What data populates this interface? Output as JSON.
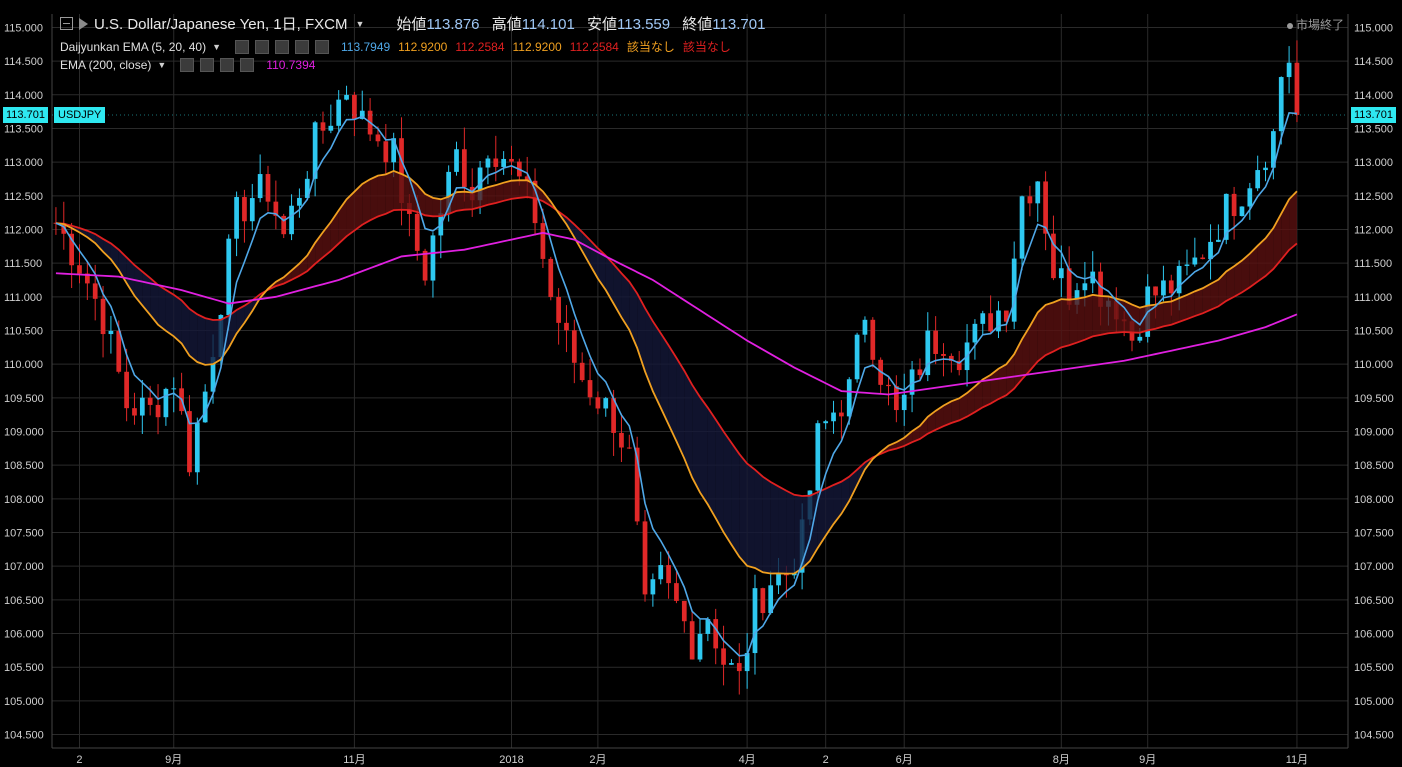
{
  "header": {
    "title": "U.S. Dollar/Japanese Yen, 1日, FXCM",
    "open_label": "始値",
    "open": "113.876",
    "high_label": "高値",
    "high": "114.101",
    "low_label": "安値",
    "low": "113.559",
    "close_label": "終値",
    "close": "113.701",
    "status": "市場終了"
  },
  "indicators": [
    {
      "name": "Daijyunkan EMA (5, 20, 40)",
      "values": [
        {
          "text": "113.7949",
          "color": "#4fa8e8"
        },
        {
          "text": "112.9200",
          "color": "#f0a020"
        },
        {
          "text": "112.2584",
          "color": "#e02020"
        },
        {
          "text": "112.9200",
          "color": "#f0a020"
        },
        {
          "text": "112.2584",
          "color": "#e02020"
        },
        {
          "text": "該当なし",
          "color": "#f0a020"
        },
        {
          "text": "該当なし",
          "color": "#e02020"
        }
      ]
    },
    {
      "name": "EMA (200, close)",
      "values": [
        {
          "text": "110.7394",
          "color": "#e020e0"
        }
      ]
    }
  ],
  "price_tag": "113.701",
  "symbol_tag": "USDJPY",
  "colors": {
    "up": "#2ec8f0",
    "down": "#e02828",
    "ema5": "#4fa8e8",
    "ema20": "#f0a020",
    "ema40": "#e02020",
    "ema200": "#e020e0",
    "grid": "#2a2a2a",
    "axis_text": "#d0d0d0"
  },
  "chart_data": {
    "type": "line",
    "instrument": "USDJPY",
    "ylim": [
      104.3,
      115.2
    ],
    "y_ticks": [
      "104.500",
      "105.000",
      "105.500",
      "106.000",
      "106.500",
      "107.000",
      "107.500",
      "108.000",
      "108.500",
      "109.000",
      "109.500",
      "110.000",
      "110.500",
      "111.000",
      "111.500",
      "112.000",
      "112.500",
      "113.000",
      "113.500",
      "114.000",
      "114.500",
      "115.000"
    ],
    "x_ticks": [
      "2",
      "9月",
      "11月",
      "2018",
      "2月",
      "4月",
      "2",
      "6月",
      "8月",
      "9月",
      "11月"
    ],
    "x_tick_index": [
      3,
      15,
      38,
      58,
      69,
      88,
      98,
      108,
      128,
      139,
      158
    ],
    "n_bars": 165,
    "price_path": [
      [
        0,
        112.1
      ],
      [
        3,
        111.5
      ],
      [
        6,
        110.7
      ],
      [
        9,
        109.4
      ],
      [
        12,
        109.3
      ],
      [
        15,
        109.8
      ],
      [
        17,
        108.6
      ],
      [
        19,
        109.6
      ],
      [
        21,
        111.0
      ],
      [
        23,
        112.2
      ],
      [
        25,
        112.5
      ],
      [
        27,
        112.6
      ],
      [
        29,
        111.9
      ],
      [
        31,
        112.6
      ],
      [
        33,
        113.3
      ],
      [
        35,
        113.7
      ],
      [
        37,
        114.1
      ],
      [
        39,
        113.6
      ],
      [
        41,
        113.4
      ],
      [
        43,
        113.1
      ],
      [
        45,
        112.0
      ],
      [
        47,
        111.4
      ],
      [
        49,
        112.3
      ],
      [
        51,
        113.1
      ],
      [
        53,
        112.6
      ],
      [
        55,
        113.3
      ],
      [
        57,
        113.1
      ],
      [
        59,
        112.7
      ],
      [
        61,
        112.2
      ],
      [
        63,
        111.0
      ],
      [
        65,
        110.3
      ],
      [
        67,
        109.8
      ],
      [
        69,
        109.5
      ],
      [
        71,
        109.2
      ],
      [
        73,
        108.6
      ],
      [
        75,
        106.3
      ],
      [
        77,
        106.8
      ],
      [
        79,
        106.4
      ],
      [
        81,
        105.9
      ],
      [
        83,
        106.3
      ],
      [
        85,
        105.6
      ],
      [
        87,
        105.3
      ],
      [
        89,
        106.4
      ],
      [
        91,
        106.8
      ],
      [
        93,
        106.9
      ],
      [
        95,
        107.4
      ],
      [
        97,
        108.9
      ],
      [
        99,
        109.3
      ],
      [
        101,
        109.6
      ],
      [
        103,
        110.8
      ],
      [
        105,
        109.9
      ],
      [
        107,
        109.2
      ],
      [
        109,
        109.7
      ],
      [
        111,
        110.3
      ],
      [
        113,
        110.4
      ],
      [
        115,
        110.2
      ],
      [
        117,
        110.4
      ],
      [
        119,
        110.7
      ],
      [
        121,
        110.9
      ],
      [
        123,
        112.5
      ],
      [
        125,
        112.8
      ],
      [
        127,
        111.4
      ],
      [
        129,
        111.1
      ],
      [
        131,
        111.5
      ],
      [
        133,
        111.1
      ],
      [
        135,
        110.9
      ],
      [
        137,
        110.4
      ],
      [
        139,
        111.0
      ],
      [
        141,
        111.1
      ],
      [
        143,
        111.2
      ],
      [
        145,
        111.5
      ],
      [
        147,
        111.9
      ],
      [
        149,
        112.3
      ],
      [
        151,
        112.6
      ],
      [
        153,
        113.0
      ],
      [
        155,
        113.4
      ],
      [
        156,
        114.3
      ],
      [
        157,
        114.55
      ],
      [
        158,
        113.701
      ]
    ],
    "ema200_path": [
      [
        0,
        111.35
      ],
      [
        8,
        111.3
      ],
      [
        16,
        111.1
      ],
      [
        22,
        110.9
      ],
      [
        28,
        111.0
      ],
      [
        36,
        111.25
      ],
      [
        44,
        111.6
      ],
      [
        52,
        111.7
      ],
      [
        58,
        111.85
      ],
      [
        62,
        111.95
      ],
      [
        66,
        111.85
      ],
      [
        70,
        111.6
      ],
      [
        76,
        111.25
      ],
      [
        82,
        110.8
      ],
      [
        88,
        110.35
      ],
      [
        94,
        109.95
      ],
      [
        100,
        109.6
      ],
      [
        106,
        109.55
      ],
      [
        112,
        109.65
      ],
      [
        118,
        109.75
      ],
      [
        124,
        109.85
      ],
      [
        130,
        109.95
      ],
      [
        136,
        110.05
      ],
      [
        142,
        110.2
      ],
      [
        148,
        110.35
      ],
      [
        154,
        110.55
      ],
      [
        158,
        110.74
      ]
    ],
    "last_values": {
      "close": 113.701,
      "ema5": 113.7949,
      "ema20": 112.92,
      "ema40": 112.2584,
      "ema200": 110.7394
    }
  }
}
